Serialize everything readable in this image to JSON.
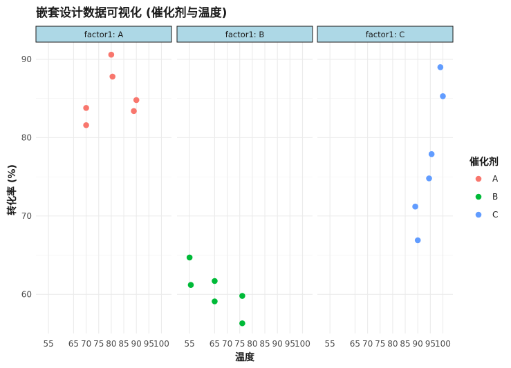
{
  "chart_data": {
    "type": "scatter",
    "title": "嵌套设计数据可视化 (催化剂与温度)",
    "xlabel": "温度",
    "ylabel": "转化率 (%)",
    "x_ticks": [
      55,
      65,
      70,
      75,
      80,
      85,
      90,
      95,
      100
    ],
    "y_ticks": [
      60,
      70,
      80,
      90
    ],
    "xlim": [
      50,
      104
    ],
    "ylim": [
      55,
      92.2
    ],
    "legend": {
      "title": "催化剂",
      "position": "right",
      "entries": [
        {
          "label": "A",
          "color": "#F8766D"
        },
        {
          "label": "B",
          "color": "#00BA38"
        },
        {
          "label": "C",
          "color": "#619CFF"
        }
      ]
    },
    "panels": [
      {
        "strip": "factor1: A",
        "color": "#F8766D",
        "points": [
          {
            "x": 70,
            "y": 83.8
          },
          {
            "x": 70,
            "y": 81.6
          },
          {
            "x": 80,
            "y": 90.6
          },
          {
            "x": 80.5,
            "y": 87.8
          },
          {
            "x": 90,
            "y": 84.8
          },
          {
            "x": 89,
            "y": 83.4
          }
        ]
      },
      {
        "strip": "factor1: B",
        "color": "#00BA38",
        "points": [
          {
            "x": 55,
            "y": 64.7
          },
          {
            "x": 55.5,
            "y": 61.2
          },
          {
            "x": 65,
            "y": 61.7
          },
          {
            "x": 65,
            "y": 59.1
          },
          {
            "x": 76,
            "y": 59.8
          },
          {
            "x": 76,
            "y": 56.3
          }
        ]
      },
      {
        "strip": "factor1: C",
        "color": "#619CFF",
        "points": [
          {
            "x": 99,
            "y": 89.0
          },
          {
            "x": 100,
            "y": 85.3
          },
          {
            "x": 95.5,
            "y": 77.9
          },
          {
            "x": 94.5,
            "y": 74.8
          },
          {
            "x": 89,
            "y": 71.2
          },
          {
            "x": 90,
            "y": 66.9
          }
        ]
      }
    ]
  }
}
